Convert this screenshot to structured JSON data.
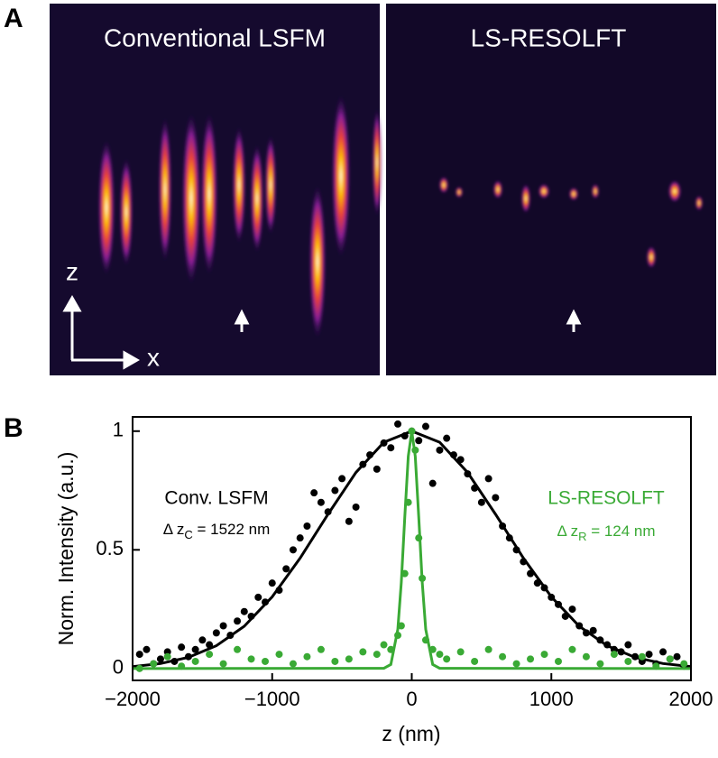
{
  "panel_a": {
    "label": "A",
    "left_title": "Conventional LSFM",
    "right_title": "LS-RESOLFT",
    "axis_z": "z",
    "axis_x": "x"
  },
  "chart_data": {
    "type": "scatter",
    "panel_label": "B",
    "x_label": "z (nm)",
    "y_label": "Norm. Intensity (a.u.)",
    "xlim": [
      -2000,
      2000
    ],
    "ylim": [
      -0.05,
      1.06
    ],
    "xticks": [
      {
        "value": -2000,
        "label": "−2000"
      },
      {
        "value": -1000,
        "label": "−1000"
      },
      0,
      1000,
      2000
    ],
    "yticks": [
      0,
      0.5,
      1
    ],
    "series": [
      {
        "name": "Conv. LSFM",
        "color": "#000000",
        "style": "markers",
        "x": [
          -1950,
          -1900,
          -1850,
          -1800,
          -1750,
          -1700,
          -1650,
          -1600,
          -1550,
          -1500,
          -1450,
          -1400,
          -1350,
          -1300,
          -1250,
          -1200,
          -1150,
          -1100,
          -1050,
          -1000,
          -950,
          -900,
          -850,
          -800,
          -750,
          -700,
          -650,
          -600,
          -550,
          -500,
          -450,
          -400,
          -350,
          -300,
          -250,
          -200,
          -150,
          -100,
          -50,
          0,
          50,
          100,
          150,
          200,
          250,
          300,
          350,
          400,
          450,
          500,
          550,
          600,
          650,
          700,
          750,
          800,
          850,
          900,
          950,
          1000,
          1050,
          1100,
          1150,
          1200,
          1250,
          1300,
          1350,
          1400,
          1450,
          1500,
          1550,
          1600,
          1650,
          1700,
          1750,
          1800,
          1850,
          1900,
          1950
        ],
        "values": [
          0.06,
          0.08,
          0.02,
          0.04,
          0.07,
          0.03,
          0.09,
          0.05,
          0.08,
          0.12,
          0.1,
          0.15,
          0.18,
          0.14,
          0.2,
          0.24,
          0.22,
          0.3,
          0.28,
          0.36,
          0.33,
          0.42,
          0.5,
          0.55,
          0.6,
          0.74,
          0.7,
          0.66,
          0.75,
          0.8,
          0.62,
          0.68,
          0.86,
          0.9,
          0.84,
          0.95,
          0.93,
          1.03,
          0.98,
          1.0,
          0.96,
          1.02,
          0.78,
          0.92,
          0.97,
          0.9,
          0.88,
          0.82,
          0.76,
          0.7,
          0.8,
          0.72,
          0.6,
          0.55,
          0.5,
          0.45,
          0.4,
          0.36,
          0.34,
          0.3,
          0.27,
          0.22,
          0.25,
          0.18,
          0.15,
          0.16,
          0.12,
          0.1,
          0.08,
          0.07,
          0.1,
          0.05,
          0.03,
          0.06,
          0.02,
          0.07,
          0.04,
          0.05,
          0.01
        ]
      },
      {
        "color": "#000000",
        "style": "line",
        "x": [
          -2000,
          -1800,
          -1600,
          -1400,
          -1200,
          -1000,
          -800,
          -600,
          -400,
          -200,
          0,
          200,
          400,
          600,
          800,
          1000,
          1200,
          1400,
          1600,
          1800,
          2000
        ],
        "values": [
          0.008,
          0.021,
          0.047,
          0.096,
          0.178,
          0.302,
          0.465,
          0.65,
          0.826,
          0.953,
          1.0,
          0.953,
          0.826,
          0.65,
          0.465,
          0.302,
          0.178,
          0.096,
          0.047,
          0.021,
          0.008
        ]
      },
      {
        "name": "LS-RESOLFT",
        "color": "#3aaa35",
        "style": "markers",
        "x": [
          -1950,
          -1850,
          -1750,
          -1650,
          -1550,
          -1450,
          -1350,
          -1250,
          -1150,
          -1050,
          -950,
          -850,
          -750,
          -650,
          -550,
          -450,
          -350,
          -250,
          -200,
          -150,
          -100,
          -75,
          -50,
          -25,
          0,
          25,
          50,
          75,
          100,
          150,
          200,
          250,
          350,
          450,
          550,
          650,
          750,
          850,
          950,
          1050,
          1150,
          1250,
          1350,
          1450,
          1550,
          1650,
          1750,
          1850,
          1950
        ],
        "values": [
          0.0,
          0.02,
          0.05,
          0.01,
          0.03,
          0.06,
          0.02,
          0.08,
          0.04,
          0.03,
          0.06,
          0.02,
          0.05,
          0.08,
          0.03,
          0.04,
          0.07,
          0.06,
          0.1,
          0.08,
          0.14,
          0.18,
          0.4,
          0.7,
          1.0,
          0.92,
          0.55,
          0.38,
          0.12,
          0.08,
          0.06,
          0.04,
          0.07,
          0.03,
          0.08,
          0.05,
          0.02,
          0.04,
          0.06,
          0.03,
          0.08,
          0.05,
          0.02,
          0.06,
          0.03,
          0.05,
          0.01,
          0.04,
          0.02
        ]
      },
      {
        "color": "#3aaa35",
        "style": "line",
        "x": [
          -2000,
          -200,
          -150,
          -100,
          -75,
          -50,
          -25,
          0,
          25,
          50,
          75,
          100,
          150,
          200,
          2000
        ],
        "values": [
          0,
          0.001,
          0.017,
          0.165,
          0.363,
          0.638,
          0.894,
          1.0,
          0.894,
          0.638,
          0.363,
          0.165,
          0.017,
          0.001,
          0
        ]
      }
    ],
    "annotations": [
      {
        "series": 0,
        "prefix": "Δ z",
        "subscript": "C",
        "suffix": " = 1522 nm"
      },
      {
        "series": 2,
        "prefix": "Δ z",
        "subscript": "R",
        "suffix": " = 124 nm"
      }
    ]
  }
}
